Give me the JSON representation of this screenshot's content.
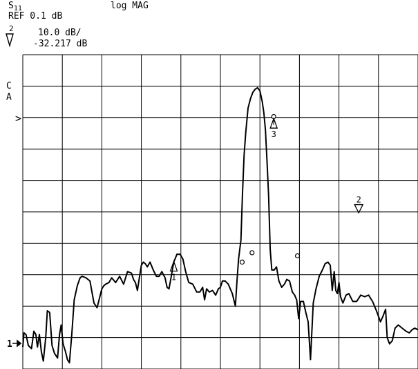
{
  "header": {
    "param_main": "S",
    "param_sub": "11",
    "format": "log MAG",
    "ref": "REF 0.1 dB",
    "active_marker": "2",
    "scale": "10.0 dB/",
    "marker_value": "-32.217 dB"
  },
  "side_labels": {
    "c": "C",
    "a": "A",
    "ref_pointer": ">",
    "channel": "1"
  },
  "chart_data": {
    "type": "line",
    "title": "",
    "xlabel": "",
    "ylabel": "",
    "xlim": [
      0,
      10
    ],
    "ylim": [
      -80,
      20
    ],
    "grid": true,
    "reference_level_db": 0.1,
    "scale_db_per_div": 10.0,
    "series": [
      {
        "x": [
          0.0,
          0.03,
          0.08,
          0.14,
          0.22,
          0.28,
          0.33,
          0.37,
          0.42,
          0.47,
          0.52,
          0.58,
          0.62,
          0.68,
          0.74,
          0.8,
          0.88,
          0.93,
          0.97,
          1.02,
          1.08,
          1.13,
          1.18,
          1.24,
          1.3,
          1.38,
          1.45,
          1.5,
          1.6,
          1.7,
          1.8,
          1.88,
          1.95,
          2.0,
          2.05,
          2.1,
          2.18,
          2.25,
          2.35,
          2.45,
          2.55,
          2.65,
          2.75,
          2.8,
          2.85,
          2.9,
          2.95,
          3.0,
          3.05,
          3.1,
          3.15,
          3.22,
          3.3,
          3.38,
          3.45,
          3.52,
          3.6,
          3.65,
          3.7,
          3.75,
          3.82,
          3.9,
          3.98,
          4.05,
          4.12,
          4.2,
          4.3,
          4.4,
          4.48,
          4.55,
          4.6,
          4.65,
          4.72,
          4.8,
          4.88,
          4.95,
          5.0,
          5.05,
          5.12,
          5.2,
          5.3,
          5.38,
          5.42,
          5.46,
          5.52,
          5.56,
          5.6,
          5.64,
          5.7,
          5.76,
          5.82,
          5.88,
          5.94,
          6.0,
          6.06,
          6.1,
          6.14,
          6.18,
          6.22,
          6.26,
          6.3,
          6.36,
          6.42,
          6.48,
          6.55,
          6.62,
          6.68,
          6.75,
          6.82,
          6.88,
          6.93,
          6.98,
          7.03,
          7.1,
          7.16,
          7.22,
          7.28,
          7.35,
          7.42,
          7.5,
          7.58,
          7.65,
          7.72,
          7.78,
          7.83,
          7.88,
          7.92,
          7.96,
          8.0,
          8.04,
          8.1,
          8.18,
          8.25,
          8.35,
          8.45,
          8.55,
          8.65,
          8.75,
          8.85,
          8.95,
          9.05,
          9.12,
          9.18,
          9.22,
          9.28,
          9.35,
          9.42,
          9.5,
          9.6,
          9.7,
          9.78,
          9.85,
          9.92,
          10.0
        ],
        "y": [
          -73.0,
          -68.5,
          -69.0,
          -72.5,
          -73.5,
          -68.0,
          -69.0,
          -73.0,
          -69.0,
          -74.5,
          -77.5,
          -70.0,
          -61.5,
          -62.0,
          -72.5,
          -75.0,
          -76.5,
          -69.0,
          -66.0,
          -72.0,
          -74.5,
          -77.0,
          -78.0,
          -69.0,
          -58.0,
          -53.5,
          -51.0,
          -50.5,
          -51.0,
          -52.0,
          -59.0,
          -60.5,
          -57.0,
          -54.5,
          -53.5,
          -53.0,
          -52.5,
          -51.0,
          -52.5,
          -50.5,
          -53.0,
          -49.0,
          -49.5,
          -51.5,
          -52.5,
          -55.0,
          -51.0,
          -47.0,
          -46.0,
          -46.5,
          -47.5,
          -46.0,
          -48.5,
          -50.5,
          -50.5,
          -49.0,
          -51.0,
          -54.0,
          -54.5,
          -51.0,
          -46.0,
          -43.5,
          -43.5,
          -45.0,
          -49.0,
          -52.5,
          -53.0,
          -55.5,
          -55.5,
          -54.0,
          -58.0,
          -54.5,
          -55.5,
          -55.0,
          -56.5,
          -54.5,
          -54.0,
          -52.0,
          -52.0,
          -53.0,
          -56.0,
          -60.0,
          -52.0,
          -45.0,
          -39.0,
          -24.0,
          -12.0,
          -5.0,
          3.0,
          6.0,
          8.0,
          9.0,
          9.5,
          8.5,
          5.0,
          1.5,
          -4.0,
          -14.0,
          -25.0,
          -42.0,
          -48.5,
          -48.5,
          -47.5,
          -52.0,
          -54.0,
          -53.0,
          -51.5,
          -52.0,
          -55.5,
          -56.5,
          -58.0,
          -64.0,
          -58.5,
          -58.5,
          -62.0,
          -65.0,
          -77.0,
          -59.0,
          -54.5,
          -50.5,
          -48.5,
          -46.5,
          -46.0,
          -47.0,
          -55.0,
          -49.0,
          -55.0,
          -56.0,
          -52.5,
          -57.0,
          -59.0,
          -56.5,
          -56.0,
          -58.5,
          -58.5,
          -56.5,
          -57.0,
          -56.5,
          -58.5,
          -61.5,
          -65.0,
          -63.0,
          -61.0,
          -70.0,
          -72.0,
          -71.0,
          -67.0,
          -66.0,
          -67.0,
          -68.0,
          -68.5,
          -67.5,
          -67.0,
          -67.5
        ]
      }
    ],
    "markers": [
      {
        "label": "1",
        "x": 3.82,
        "y": -46.0,
        "symbol": "triangle",
        "label_position": "below"
      },
      {
        "label": "2",
        "x": 8.5,
        "y": -31.0,
        "symbol": "triangle",
        "label_position": "above"
      },
      {
        "label": "3",
        "x": 6.35,
        "y": -0.5,
        "symbol": "triangle",
        "label_position": "below"
      }
    ],
    "trace_marks": [
      {
        "x": 6.35,
        "y": 0.3,
        "symbol": "circle"
      },
      {
        "x": 5.55,
        "y": -46.0,
        "symbol": "circle"
      },
      {
        "x": 5.8,
        "y": -43.0,
        "symbol": "circle"
      },
      {
        "x": 6.95,
        "y": -44.0,
        "symbol": "circle"
      }
    ]
  },
  "colors": {
    "trace": "#000000",
    "grid": "#000000",
    "background": "#ffffff"
  }
}
